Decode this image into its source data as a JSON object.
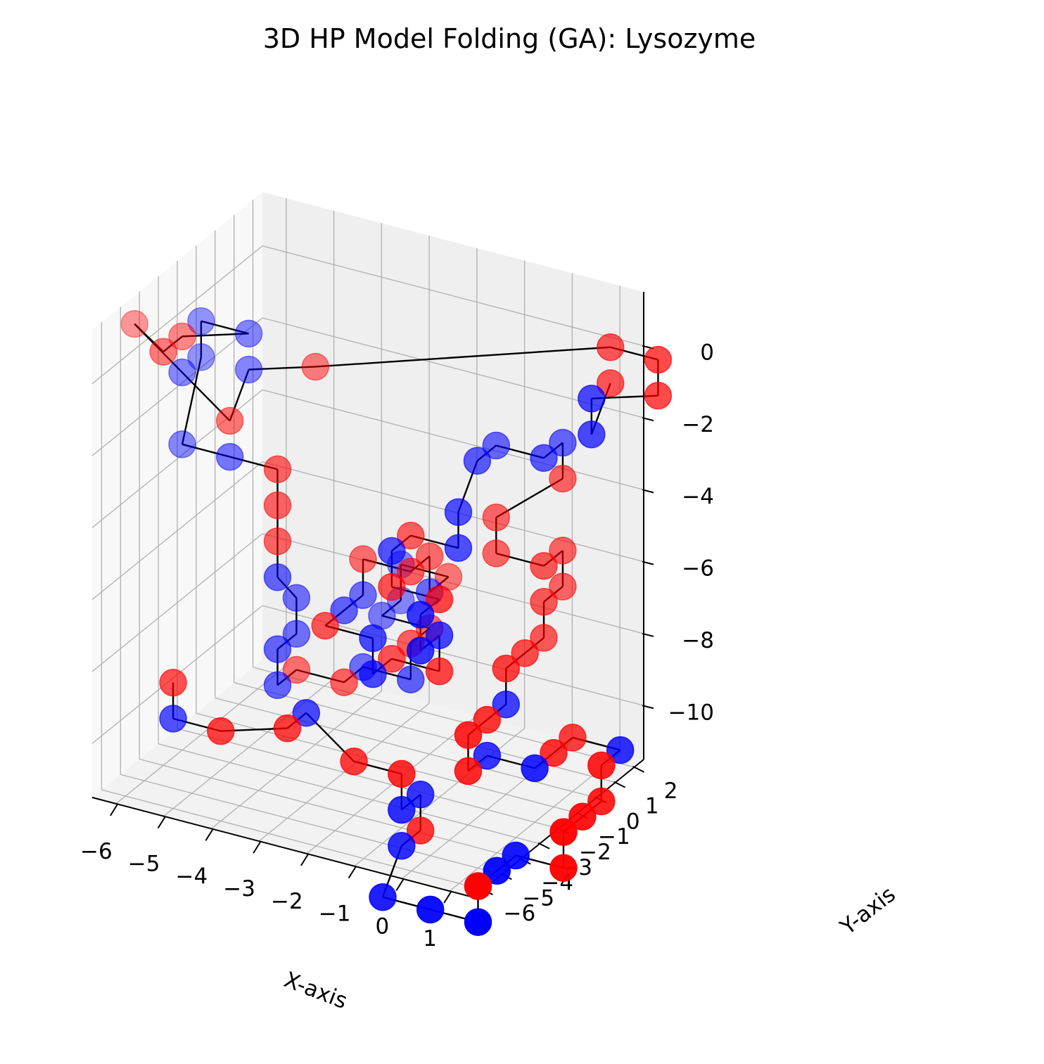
{
  "chart_data": {
    "type": "scatter",
    "projection": "3d",
    "title": "3D HP Model Folding (GA): Lysozyme",
    "xlabel": "X-axis",
    "ylabel": "Y-axis",
    "zlabel": "",
    "xlim": [
      -6.5,
      1.5
    ],
    "ylim": [
      -6.5,
      2.5
    ],
    "zlim": [
      -11.5,
      1.5
    ],
    "x_ticks": [
      -6,
      -5,
      -4,
      -3,
      -2,
      -1,
      0,
      1
    ],
    "x_tick_labels": [
      "−6",
      "−5",
      "−4",
      "−3",
      "−2",
      "−1",
      "0",
      "1"
    ],
    "y_ticks": [
      -6,
      -5,
      -4,
      -3,
      -2,
      -1,
      0,
      1,
      2
    ],
    "y_tick_labels": [
      "−6",
      "−5",
      "−4",
      "−3",
      "−2",
      "−1",
      "0",
      "1",
      "2"
    ],
    "z_ticks": [
      -10,
      -8,
      -6,
      -4,
      -2,
      0
    ],
    "z_tick_labels": [
      "−10",
      "−8",
      "−6",
      "−4",
      "−2",
      "0"
    ],
    "grid": true,
    "connect_points": true,
    "line_color": "#000000",
    "colors": {
      "H": "#ff0000",
      "P": "#0000ff"
    },
    "series": [
      {
        "values": [
          {
            "x": -5,
            "y": -6,
            "z": -8,
            "t": "H"
          },
          {
            "x": -5,
            "y": -6,
            "z": -9,
            "t": "P"
          },
          {
            "x": -4,
            "y": -6,
            "z": -9,
            "t": "H"
          },
          {
            "x": -3,
            "y": -5,
            "z": -9,
            "t": "H"
          },
          {
            "x": -3,
            "y": -4,
            "z": -9,
            "t": "P"
          },
          {
            "x": -2,
            "y": -4,
            "z": -10,
            "t": "H"
          },
          {
            "x": -1,
            "y": -4,
            "z": -10,
            "t": "H"
          },
          {
            "x": -1,
            "y": -4,
            "z": -11,
            "t": "P"
          },
          {
            "x": -1,
            "y": -3,
            "z": -11,
            "t": "P"
          },
          {
            "x": -1,
            "y": -3,
            "z": -12,
            "t": "H"
          },
          {
            "x": -1,
            "y": -4,
            "z": -12,
            "t": "P"
          },
          {
            "x": -1,
            "y": -5,
            "z": -13,
            "t": "P"
          },
          {
            "x": 0,
            "y": -5,
            "z": -13,
            "t": "P"
          },
          {
            "x": 1,
            "y": -5,
            "z": -13,
            "t": "P"
          },
          {
            "x": 1,
            "y": -5,
            "z": -12,
            "t": "H"
          },
          {
            "x": 1,
            "y": -4,
            "z": -12,
            "t": "P"
          },
          {
            "x": 1,
            "y": -3,
            "z": -12,
            "t": "P"
          },
          {
            "x": 2,
            "y": -3,
            "z": -12,
            "t": "H"
          },
          {
            "x": 2,
            "y": -3,
            "z": -11,
            "t": "H"
          },
          {
            "x": 2,
            "y": -2,
            "z": -11,
            "t": "H"
          },
          {
            "x": 2,
            "y": -1,
            "z": -11,
            "t": "H"
          },
          {
            "x": 2,
            "y": -1,
            "z": -10,
            "t": "H"
          },
          {
            "x": 2,
            "y": 0,
            "z": -10,
            "t": "P"
          },
          {
            "x": 1,
            "y": 0,
            "z": -10,
            "t": "H"
          },
          {
            "x": 1,
            "y": -1,
            "z": -10,
            "t": "H"
          },
          {
            "x": 1,
            "y": -2,
            "z": -10,
            "t": "P"
          },
          {
            "x": 0,
            "y": -2,
            "z": -10,
            "t": "P"
          },
          {
            "x": 0,
            "y": -3,
            "z": -10,
            "t": "H"
          },
          {
            "x": 0,
            "y": -3,
            "z": -9,
            "t": "H"
          },
          {
            "x": 0,
            "y": -2,
            "z": -9,
            "t": "H"
          },
          {
            "x": 0,
            "y": -1,
            "z": -9,
            "t": "P"
          },
          {
            "x": 0,
            "y": -1,
            "z": -8,
            "t": "H"
          },
          {
            "x": 0,
            "y": 0,
            "z": -8,
            "t": "H"
          },
          {
            "x": 0,
            "y": 1,
            "z": -8,
            "t": "H"
          },
          {
            "x": 0,
            "y": 1,
            "z": -7,
            "t": "H"
          },
          {
            "x": 0,
            "y": 2,
            "z": -7,
            "t": "H"
          },
          {
            "x": 0,
            "y": 2,
            "z": -6,
            "t": "H"
          },
          {
            "x": 0,
            "y": 1,
            "z": -6,
            "t": "H"
          },
          {
            "x": -1,
            "y": 1,
            "z": -6,
            "t": "H"
          },
          {
            "x": -1,
            "y": 1,
            "z": -5,
            "t": "H"
          },
          {
            "x": 0,
            "y": 2,
            "z": -4,
            "t": "H"
          },
          {
            "x": 0,
            "y": 2,
            "z": -3,
            "t": "P"
          },
          {
            "x": 0,
            "y": 1,
            "z": -3,
            "t": "P"
          },
          {
            "x": -1,
            "y": 1,
            "z": -3,
            "t": "P"
          },
          {
            "x": -1,
            "y": 0,
            "z": -3,
            "t": "P"
          },
          {
            "x": -1,
            "y": -1,
            "z": -4,
            "t": "P"
          },
          {
            "x": -1,
            "y": -1,
            "z": -5,
            "t": "P"
          },
          {
            "x": -2,
            "y": -1,
            "z": -5,
            "t": "H"
          },
          {
            "x": -2,
            "y": -2,
            "z": -5,
            "t": "P"
          },
          {
            "x": -2,
            "y": -2,
            "z": -6,
            "t": "H"
          },
          {
            "x": -1,
            "y": -2,
            "z": -6,
            "t": "H"
          },
          {
            "x": -1,
            "y": -3,
            "z": -6,
            "t": "P"
          },
          {
            "x": -1,
            "y": -3,
            "z": -7,
            "t": "P"
          },
          {
            "x": -1,
            "y": -2,
            "z": -7,
            "t": "P"
          },
          {
            "x": -1,
            "y": -2,
            "z": -8,
            "t": "H"
          },
          {
            "x": -2,
            "y": -2,
            "z": -8,
            "t": "H"
          },
          {
            "x": -2,
            "y": -3,
            "z": -8,
            "t": "P"
          },
          {
            "x": -2,
            "y": -3,
            "z": -7,
            "t": "P"
          },
          {
            "x": -3,
            "y": -3,
            "z": -7,
            "t": "H"
          },
          {
            "x": -3,
            "y": -2,
            "z": -7,
            "t": "P"
          },
          {
            "x": -3,
            "y": -1,
            "z": -7,
            "t": "P"
          },
          {
            "x": -3,
            "y": -1,
            "z": -6,
            "t": "H"
          },
          {
            "x": -2,
            "y": -1,
            "z": -6,
            "t": "H"
          },
          {
            "x": -2,
            "y": 0,
            "z": -6,
            "t": "H"
          },
          {
            "x": -2,
            "y": 0,
            "z": -7,
            "t": "P"
          },
          {
            "x": -2,
            "y": 1,
            "z": -7,
            "t": "H"
          },
          {
            "x": -3,
            "y": 1,
            "z": -7,
            "t": "P"
          },
          {
            "x": -3,
            "y": 1,
            "z": -8,
            "t": "P"
          },
          {
            "x": -3,
            "y": 0,
            "z": -8,
            "t": "P"
          },
          {
            "x": -2,
            "y": 0,
            "z": -8,
            "t": "H"
          },
          {
            "x": -2,
            "y": -1,
            "z": -8,
            "t": "H"
          },
          {
            "x": -2,
            "y": -1,
            "z": -9,
            "t": "P"
          },
          {
            "x": -3,
            "y": -1,
            "z": -9,
            "t": "P"
          },
          {
            "x": -3,
            "y": -2,
            "z": -9,
            "t": "H"
          },
          {
            "x": -4,
            "y": -2,
            "z": -9,
            "t": "H"
          },
          {
            "x": -4,
            "y": -3,
            "z": -9,
            "t": "P"
          },
          {
            "x": -4,
            "y": -3,
            "z": -8,
            "t": "P"
          },
          {
            "x": -4,
            "y": -2,
            "z": -8,
            "t": "P"
          },
          {
            "x": -4,
            "y": -2,
            "z": -7,
            "t": "P"
          },
          {
            "x": -4,
            "y": -3,
            "z": -6,
            "t": "P"
          },
          {
            "x": -4,
            "y": -3,
            "z": -5,
            "t": "H"
          },
          {
            "x": -4,
            "y": -3,
            "z": -4,
            "t": "H"
          },
          {
            "x": -4,
            "y": -3,
            "z": -3,
            "t": "H"
          },
          {
            "x": -5,
            "y": -3,
            "z": -3,
            "t": "P"
          },
          {
            "x": -6,
            "y": -3,
            "z": -3,
            "t": "P"
          },
          {
            "x": -6,
            "y": -2,
            "z": -1,
            "t": "P"
          },
          {
            "x": -6,
            "y": -2,
            "z": 0,
            "t": "P"
          },
          {
            "x": -5,
            "y": -2,
            "z": 0,
            "t": "P"
          },
          {
            "x": -6,
            "y": -3,
            "z": 0,
            "t": "H"
          },
          {
            "x": -6,
            "y": -4,
            "z": 0,
            "t": "H"
          },
          {
            "x": -7,
            "y": -3,
            "z": 0,
            "t": "H"
          },
          {
            "x": -6,
            "y": -3,
            "z": -1,
            "t": "P"
          },
          {
            "x": -5,
            "y": -3,
            "z": -2,
            "t": "H"
          },
          {
            "x": -5,
            "y": -2,
            "z": -1,
            "t": "P"
          },
          {
            "x": -4,
            "y": -1,
            "z": -1,
            "t": "H"
          },
          {
            "x": 1,
            "y": 2,
            "z": 0,
            "t": "H"
          },
          {
            "x": 2,
            "y": 2,
            "z": 0,
            "t": "H"
          },
          {
            "x": 2,
            "y": 2,
            "z": -1,
            "t": "H"
          },
          {
            "x": 1,
            "y": 1,
            "z": -1,
            "t": "P"
          },
          {
            "x": 1,
            "y": 1,
            "z": -2,
            "t": "P"
          },
          {
            "x": 1,
            "y": 2,
            "z": -1,
            "t": "H"
          }
        ]
      }
    ]
  }
}
